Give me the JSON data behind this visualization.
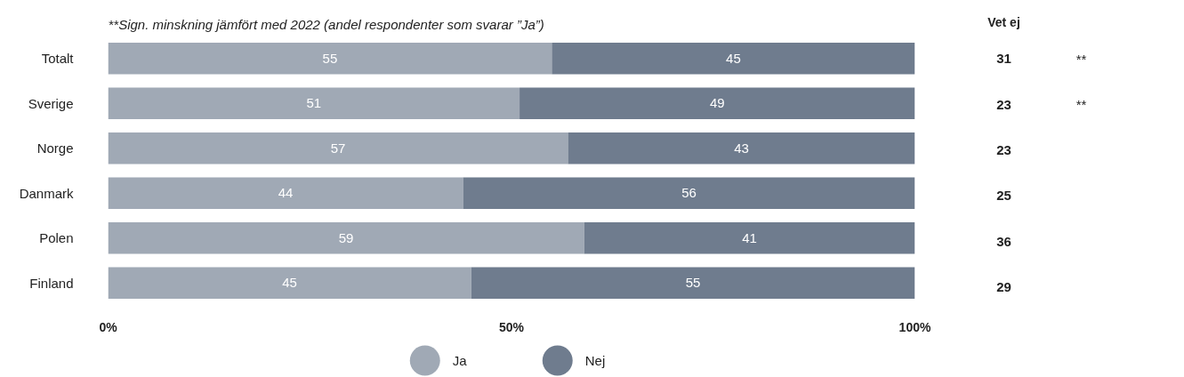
{
  "chart_data": {
    "type": "bar",
    "orientation": "horizontal",
    "stacked": true,
    "title": "**Sign. minskning jämfört med 2022 (andel respondenter som svarar ”Ja”)",
    "categories": [
      "Totalt",
      "Sverige",
      "Norge",
      "Danmark",
      "Polen",
      "Finland"
    ],
    "series": [
      {
        "name": "Ja",
        "color": "#a0a9b5",
        "values": [
          55,
          51,
          57,
          44,
          59,
          45
        ]
      },
      {
        "name": "Nej",
        "color": "#6f7c8e",
        "values": [
          45,
          49,
          43,
          56,
          41,
          55
        ]
      }
    ],
    "xlim": [
      0,
      100
    ],
    "xticks": [
      {
        "value": 0,
        "label": "0%"
      },
      {
        "value": 50,
        "label": "50%"
      },
      {
        "value": 100,
        "label": "100%"
      }
    ],
    "data_labels": true,
    "grid": false,
    "legend": "bottom",
    "annotations": [
      "Vet ej",
      "31",
      "23",
      "23",
      "25",
      "36",
      "29",
      "**",
      "**"
    ]
  }
}
